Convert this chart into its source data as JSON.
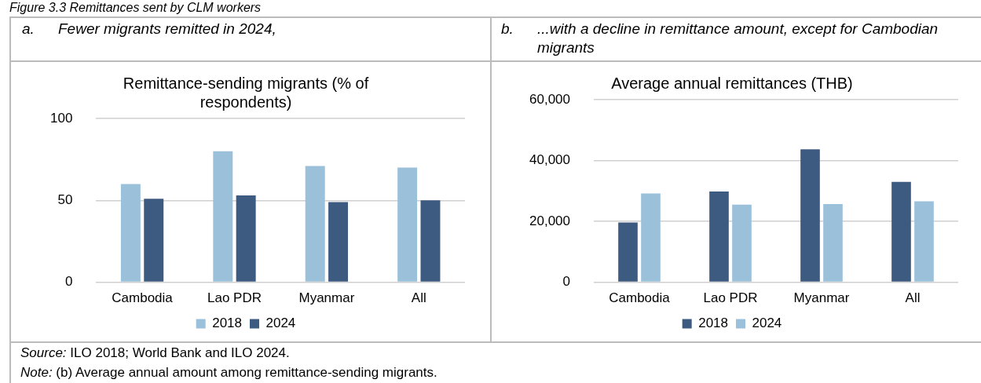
{
  "chart_data": [
    {
      "type": "bar",
      "title": "a. Fewer migrants remitted in 2024,",
      "subtitle": "Remittance-sending migrants (% of respondents)",
      "categories": [
        "Cambodia",
        "Lao PDR",
        "Myanmar",
        "All"
      ],
      "series": [
        {
          "name": "2018",
          "color": "#9bc0da",
          "values": [
            60,
            80,
            71,
            70
          ]
        },
        {
          "name": "2024",
          "color": "#3d5a80",
          "values": [
            51,
            53,
            49,
            50
          ]
        }
      ],
      "ylim": [
        0,
        100
      ],
      "yticks": [
        0,
        50,
        100
      ],
      "grid": "y",
      "legend": "bottom",
      "annotations": [
        "Figure 3.3 Remittances sent by CLM workers",
        "Source: ILO 2018; World Bank and ILO 2024.",
        "Note: (b) Average annual amount among remittance-sending migrants."
      ]
    },
    {
      "type": "bar",
      "title": "b. ...with a decline in remittance amount, except for Cambodian migrants",
      "subtitle": "Average annual remittances (THB)",
      "categories": [
        "Cambodia",
        "Lao PDR",
        "Myanmar",
        "All"
      ],
      "series": [
        {
          "name": "2018",
          "color": "#3d5a80",
          "values": [
            19600,
            29800,
            43700,
            33000
          ]
        },
        {
          "name": "2024",
          "color": "#9bc0da",
          "values": [
            29200,
            25500,
            25700,
            26600
          ]
        }
      ],
      "ylim": [
        0,
        60000
      ],
      "yticks": [
        {
          "value": 0,
          "label": "0"
        },
        {
          "value": 20000,
          "label": "20,000"
        },
        {
          "value": 40000,
          "label": "40,000"
        },
        {
          "value": 60000,
          "label": "60,000"
        }
      ],
      "grid": "y",
      "legend": "bottom"
    }
  ]
}
